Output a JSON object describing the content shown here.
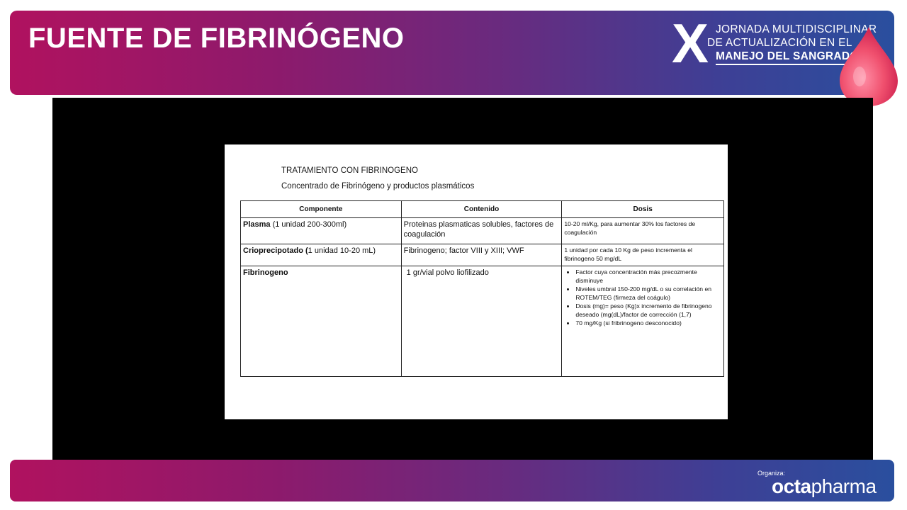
{
  "slide": {
    "title": "FUENTE DE FIBRINÓGENO"
  },
  "logo": {
    "roman": "X",
    "line1": "JORNADA MULTIDISCIPLINAR",
    "line2": "DE ACTUALIZACIÓN EN EL",
    "line3": "MANEJO DEL SANGRADO"
  },
  "document": {
    "heading": "TRATAMIENTO CON FIBRINOGENO",
    "subheading": "Concentrado de Fibrinógeno y productos plasmáticos",
    "table": {
      "headers": [
        "Componente",
        "Contenido",
        "Dosis"
      ],
      "rows": [
        {
          "component_name": "Plasma",
          "component_detail": " (1 unidad 200-300ml)",
          "content": "Proteinas plasmaticas solubles, factores de coagulación",
          "dose": "10-20 ml/Kg, para aumentar 30% los factores de coagulación"
        },
        {
          "component_name": "Crioprecipotado (",
          "component_detail": "1 unidad 10-20 mL)",
          "content": "Fibrinogeno; factor VIII y XIII; VWF",
          "dose": "1 unidad por cada 10 Kg de peso incrementa el fibrinogeno 50 mg/dL"
        },
        {
          "component_name": "Fibrinogeno",
          "component_detail": "",
          "content": "1 gr/vial polvo liofilizado",
          "dose_bullets": [
            "Factor cuya concentración más precozmente disminuye",
            "Niveles umbral 150-200 mg/dL o su correlación en ROTEM/TEG (firmeza del coágulo)",
            "Dosis (mg)= peso (Kg)x incremento de fibrinogeno deseado (mg(dL)/factor de corrección (1,7)",
            "70 mg/Kg (si fribrinogeno desconocido)"
          ]
        }
      ]
    }
  },
  "footer": {
    "organizer_label": "Organiza:",
    "organizer_bold": "octa",
    "organizer_light": "pharma"
  },
  "colors": {
    "banner_start": "#b0125f",
    "banner_end": "#2a4f9e",
    "drop": "#f0506e"
  }
}
